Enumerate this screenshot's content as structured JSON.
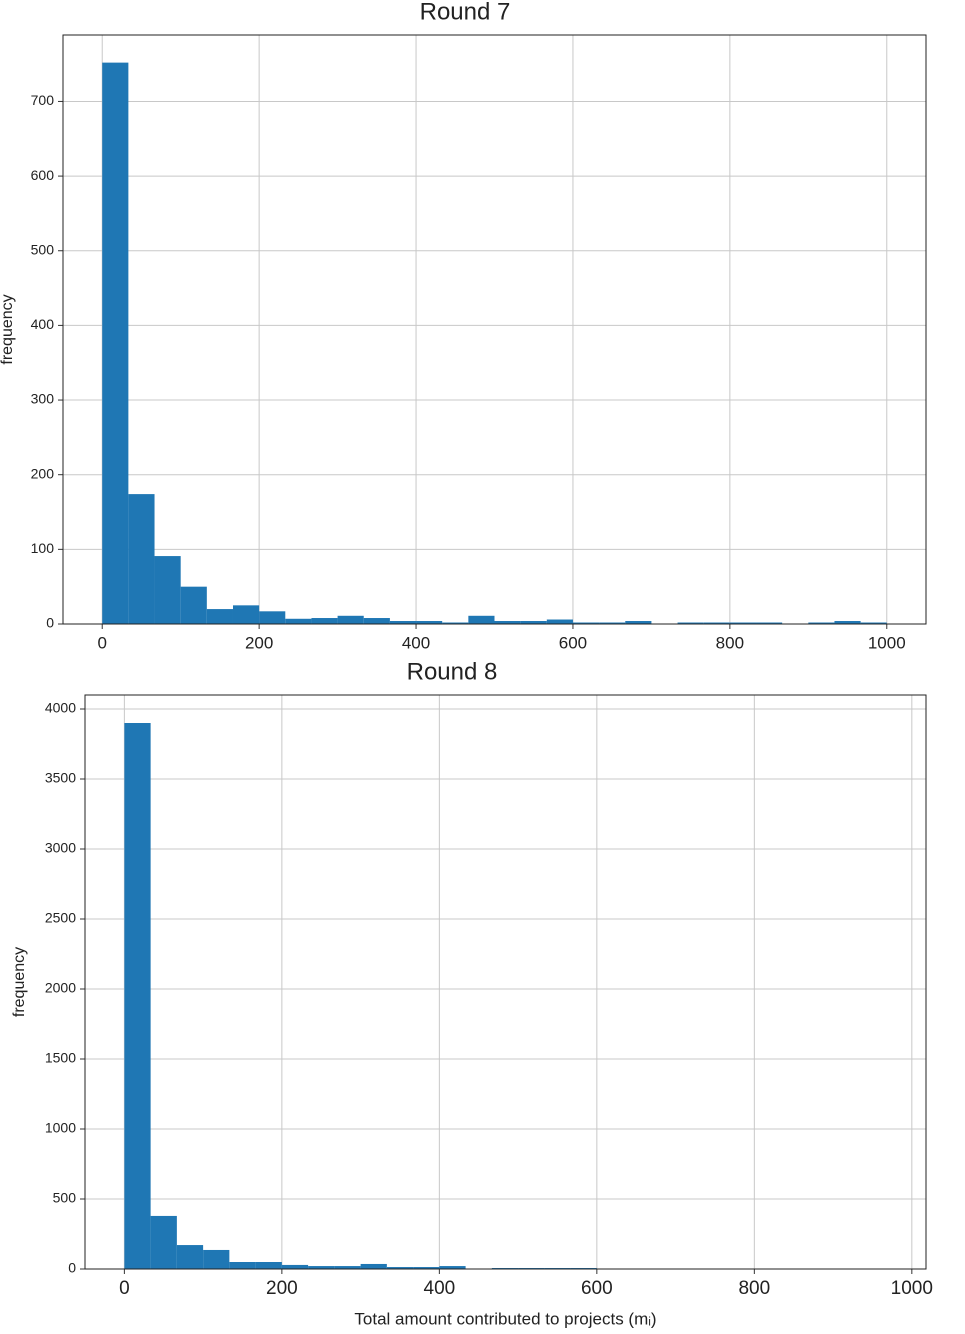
{
  "chart_data": [
    {
      "type": "histogram",
      "title": "Round 7",
      "y_label": "frequency",
      "bins": [
        0,
        33.33,
        66.67,
        100,
        133.33,
        166.67,
        200,
        233.33,
        266.67,
        300,
        333.33,
        366.67,
        400,
        433.33,
        466.67,
        500,
        533.33,
        566.67,
        600,
        633.33,
        666.67,
        700,
        733.33,
        766.67,
        800,
        833.33,
        866.67,
        900,
        933.33,
        966.67,
        1000
      ],
      "values": [
        752,
        174,
        91,
        50,
        20,
        25,
        17,
        7,
        8,
        11,
        8,
        4,
        4,
        2,
        11,
        4,
        4,
        6,
        2,
        2,
        4,
        0,
        2,
        2,
        2,
        2,
        0,
        2,
        4,
        2
      ],
      "color": "#1f77b4",
      "grid": true,
      "xlim": [
        -50,
        1050
      ],
      "xticks": [
        0,
        200,
        400,
        600,
        800,
        1000
      ],
      "ylim": [
        0,
        789
      ],
      "yticks": [
        0,
        100,
        200,
        300,
        400,
        500,
        600,
        700
      ]
    },
    {
      "type": "histogram",
      "title": "Round 8",
      "y_label": "frequency",
      "x_label": "Total amount contributed to projects (mᵢ)",
      "bins": [
        0,
        33.33,
        66.67,
        100,
        133.33,
        166.67,
        200,
        233.33,
        266.67,
        300,
        333.33,
        366.67,
        400,
        433.33,
        466.67,
        500,
        533.33,
        566.67,
        600,
        633.33,
        666.67,
        700,
        733.33,
        766.67,
        800,
        833.33,
        866.67,
        900,
        933.33,
        966.67,
        1000
      ],
      "values": [
        3900,
        379,
        171,
        136,
        50,
        50,
        29,
        21,
        21,
        36,
        14,
        14,
        21,
        0,
        7,
        7,
        7,
        7,
        3,
        0,
        0,
        0,
        0,
        0,
        0,
        0,
        0,
        0,
        0,
        0
      ],
      "color": "#1f77b4",
      "grid": true,
      "xlim": [
        -50,
        1018
      ],
      "xticks": [
        0,
        200,
        400,
        600,
        800,
        1000
      ],
      "ylim": [
        0,
        4100
      ],
      "yticks": [
        0,
        500,
        1000,
        1500,
        2000,
        2500,
        3000,
        3500,
        4000
      ]
    }
  ]
}
